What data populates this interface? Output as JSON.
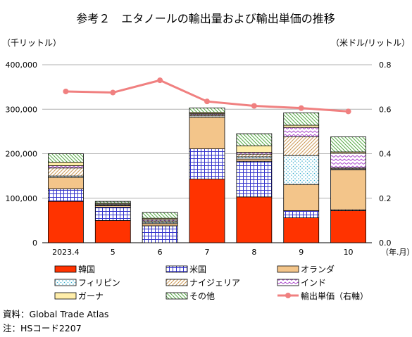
{
  "chart_data": {
    "type": "bar",
    "title": "参考２　エタノールの輸出量および輸出単価の推移",
    "y_left_unit": "（千リットル）",
    "y_right_unit": "（米ドル/リットル）",
    "x_unit": "（年.月）",
    "categories": [
      "2023.4",
      "5",
      "6",
      "7",
      "8",
      "9",
      "10"
    ],
    "y_left_ticks": [
      "0",
      "100,000",
      "200,000",
      "300,000",
      "400,000"
    ],
    "y_right_ticks": [
      "0.0",
      "0.2",
      "0.4",
      "0.6",
      "0.8"
    ],
    "ylim_left": [
      0,
      400000
    ],
    "ylim_right": [
      0,
      0.8
    ],
    "grid": true,
    "legend_position": "bottom",
    "series": [
      {
        "name": "韓国",
        "color": "#ff3300",
        "pattern": "solid",
        "values": [
          93000,
          50000,
          0,
          143000,
          103000,
          56000,
          72000
        ]
      },
      {
        "name": "米国",
        "color": "#3333cc",
        "pattern": "grid",
        "values": [
          28000,
          30000,
          38000,
          68000,
          80000,
          16000,
          2000
        ]
      },
      {
        "name": "オランダ",
        "color": "#f3c58a",
        "pattern": "solid",
        "values": [
          26000,
          3000,
          5000,
          71000,
          5000,
          59000,
          90000
        ]
      },
      {
        "name": "フィリピン",
        "color": "#33aacc",
        "pattern": "dots",
        "values": [
          3000,
          0,
          3000,
          3000,
          5000,
          65000,
          2000
        ]
      },
      {
        "name": "ナイジェリア",
        "color": "#cc9955",
        "pattern": "hatch",
        "values": [
          18000,
          2000,
          3000,
          3000,
          6000,
          42000,
          2000
        ]
      },
      {
        "name": "インド",
        "color": "#aa44cc",
        "pattern": "zigzag",
        "values": [
          5000,
          2000,
          3000,
          2000,
          4000,
          21000,
          33000
        ]
      },
      {
        "name": "ガーナ",
        "color": "#ffeeaa",
        "pattern": "solid",
        "values": [
          8000,
          2000,
          3000,
          3000,
          15000,
          5000,
          3000
        ]
      },
      {
        "name": "その他",
        "color": "#55aa44",
        "pattern": "diag",
        "values": [
          19000,
          4000,
          13000,
          10000,
          27000,
          28000,
          34000
        ]
      }
    ],
    "line": {
      "name": "輸出単価（右軸）",
      "color": "#f08080",
      "axis": "right",
      "values": [
        0.68,
        0.675,
        0.73,
        0.635,
        0.615,
        0.605,
        0.59
      ]
    }
  },
  "footnotes": {
    "source": "資料：Global Trade Atlas",
    "note": "注：HSコード2207"
  }
}
